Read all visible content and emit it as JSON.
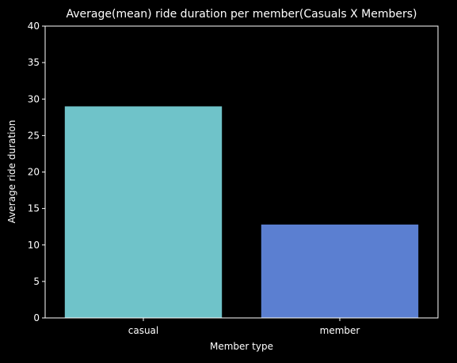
{
  "chart_data": {
    "type": "bar",
    "title": "Average(mean) ride duration per member(Casuals X Members)",
    "xlabel": "Member type",
    "ylabel": "Average ride duration",
    "categories": [
      "casual",
      "member"
    ],
    "values": [
      29.0,
      12.8
    ],
    "bar_colors": [
      "#6fc3c9",
      "#5b7fd1"
    ],
    "ylim": [
      0,
      40
    ],
    "yticks": [
      0,
      5,
      10,
      15,
      20,
      25,
      30,
      35,
      40
    ],
    "grid": false,
    "legend": "none",
    "background_color": "#000000",
    "foreground_color": "#ffffff"
  }
}
